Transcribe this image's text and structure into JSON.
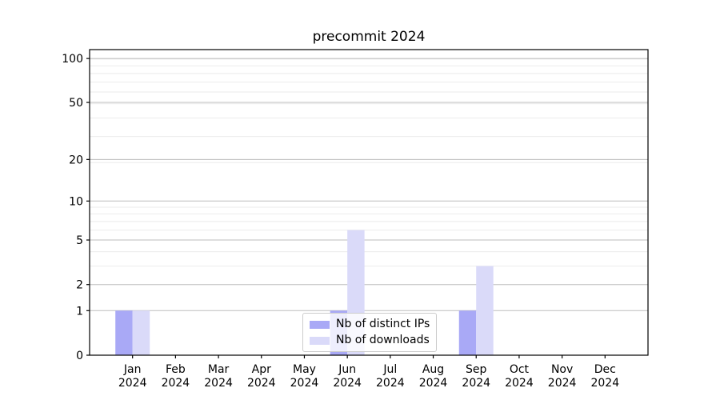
{
  "chart": {
    "title": "precommit 2024"
  },
  "chart_data": {
    "type": "bar",
    "title": "precommit 2024",
    "categories": [
      "Jan",
      "Feb",
      "Mar",
      "Apr",
      "May",
      "Jun",
      "Jul",
      "Aug",
      "Sep",
      "Oct",
      "Nov",
      "Dec"
    ],
    "category_year": "2024",
    "series": [
      {
        "name": "Nb of distinct IPs",
        "color": "#a9a9f6",
        "values": [
          1,
          0,
          0,
          0,
          0,
          1,
          0,
          0,
          1,
          0,
          0,
          0
        ]
      },
      {
        "name": "Nb of downloads",
        "color": "#dadaf9",
        "values": [
          1,
          0,
          0,
          0,
          0,
          6,
          0,
          0,
          3,
          0,
          0,
          0
        ]
      }
    ],
    "xlabel": "",
    "ylabel": "",
    "yticks": [
      0,
      1,
      2,
      5,
      10,
      20,
      50,
      100
    ],
    "ylim": [
      0,
      115
    ],
    "yscale": "symlog: position = log10(1+value)",
    "grid": true,
    "legend_position": "lower center inside plot",
    "colors": {
      "major_grid": "#bdbdbd",
      "minor_grid": "#ebebeb",
      "axis": "#000000",
      "text": "#000000",
      "background": "#ffffff"
    }
  }
}
